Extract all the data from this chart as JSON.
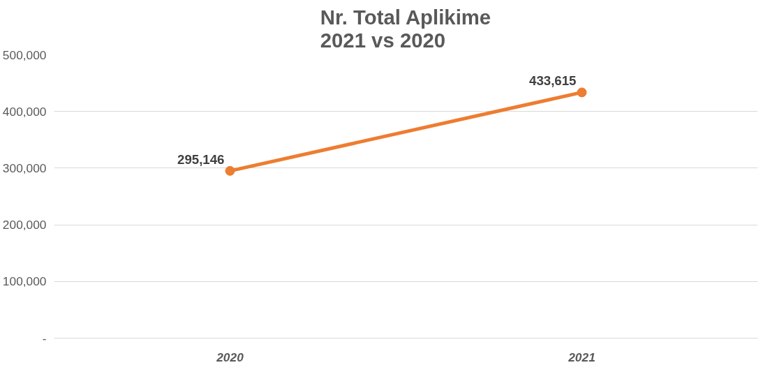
{
  "chart_data": {
    "type": "line",
    "title": "Nr. Total Aplikime\n2021 vs 2020",
    "categories": [
      "2020",
      "2021"
    ],
    "series": [
      {
        "color": "#ed7d31",
        "values": [
          295146,
          433615
        ],
        "value_labels": [
          "295,146",
          "433,615"
        ]
      }
    ],
    "ylim": [
      0,
      500000
    ],
    "yticks": [
      {
        "value": 0,
        "label": "-"
      },
      {
        "value": 100000,
        "label": "100,000"
      },
      {
        "value": 200000,
        "label": "200,000"
      },
      {
        "value": 300000,
        "label": "300,000"
      },
      {
        "value": 400000,
        "label": "400,000"
      },
      {
        "value": 500000,
        "label": "500,000"
      }
    ],
    "grid": "y",
    "marker": "circle",
    "line_style": "solid"
  }
}
